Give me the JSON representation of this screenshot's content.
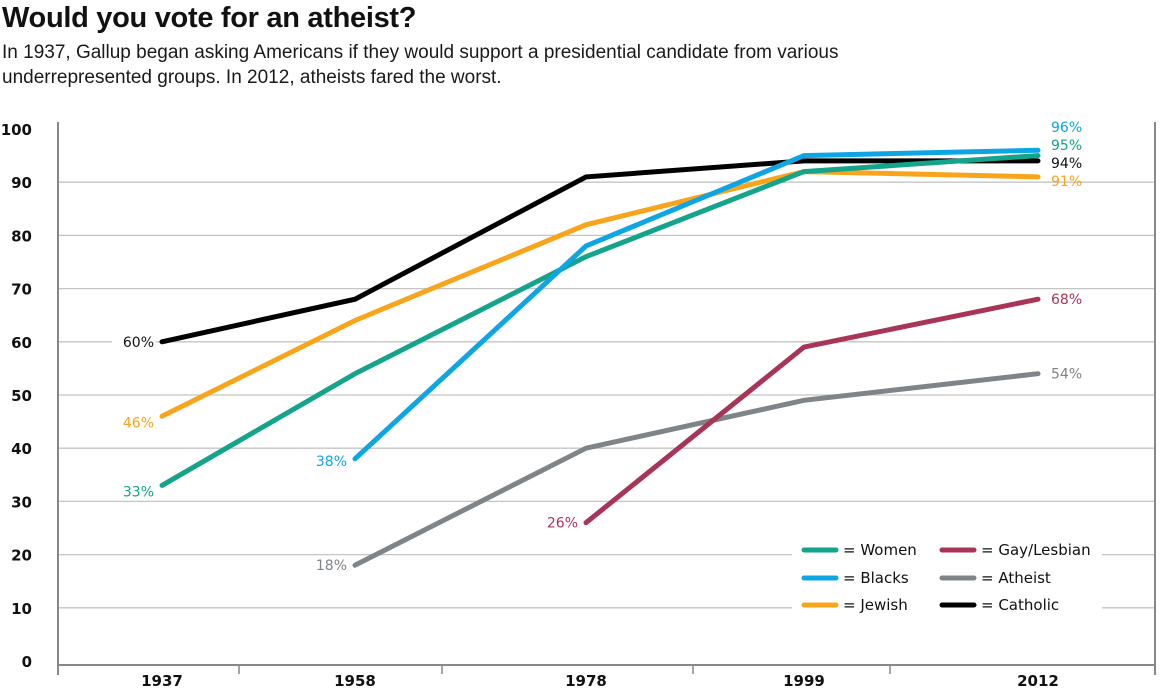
{
  "header": {
    "title": "Would you vote for an atheist?",
    "subtitle": "In 1937, Gallup began asking Americans if they would support a presidential candidate from various underrepresented groups. In 2012, atheists fared the worst."
  },
  "chart_data": {
    "type": "line",
    "title": "Would you vote for an atheist?",
    "subtitle": "In 1937, Gallup began asking Americans if they would support a presidential candidate from various underrepresented groups. In 2012, atheists fared the worst.",
    "xlabel": "",
    "ylabel": "",
    "categories": [
      "1937",
      "1958",
      "1978",
      "1999",
      "2012"
    ],
    "ylim": [
      0,
      100
    ],
    "yticks": [
      0,
      10,
      20,
      30,
      40,
      50,
      60,
      70,
      80,
      90,
      100
    ],
    "grid": true,
    "legend_position": "bottom-right",
    "series": [
      {
        "name": "Atheist",
        "legend_label": "= Atheist",
        "color": "#7f8488",
        "values": [
          null,
          18,
          40,
          49,
          54
        ],
        "labels": {
          "1": "18%",
          "4": "54%"
        }
      },
      {
        "name": "Gay/Lesbian",
        "legend_label": "= Gay/Lesbian",
        "color": "#a83557",
        "values": [
          null,
          null,
          26,
          59,
          68
        ],
        "labels": {
          "2": "26%",
          "4": "68%"
        }
      },
      {
        "name": "Jewish",
        "legend_label": "= Jewish",
        "color": "#f8a51b",
        "values": [
          46,
          64,
          82,
          92,
          91
        ],
        "labels": {
          "0": "46%",
          "4": "91%"
        }
      },
      {
        "name": "Catholic",
        "legend_label": "= Catholic",
        "color": "#000000",
        "values": [
          60,
          68,
          91,
          94,
          94
        ],
        "labels": {
          "0": "60%",
          "4": "94%"
        }
      },
      {
        "name": "Women",
        "legend_label": "= Women",
        "color": "#14a38b",
        "values": [
          33,
          54,
          76,
          92,
          95
        ],
        "labels": {
          "0": "33%",
          "4": "95%"
        }
      },
      {
        "name": "Blacks",
        "legend_label": "= Blacks",
        "color": "#0ea5e4",
        "values": [
          null,
          38,
          78,
          95,
          96
        ],
        "labels": {
          "1": "38%",
          "4": "96%"
        }
      }
    ],
    "legend_order": [
      "Women",
      "Gay/Lesbian",
      "Blacks",
      "Atheist",
      "Jewish",
      "Catholic"
    ]
  }
}
